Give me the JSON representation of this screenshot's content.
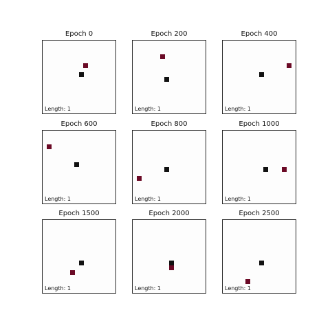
{
  "colors": {
    "snake": "#111111",
    "food": "#6b0a26",
    "board_background": "#fdfdfd",
    "border": "#222222"
  },
  "grid_size": 16,
  "panels": [
    {
      "title": "Epoch 0",
      "length_label": "Length: 1",
      "snake": [
        [
          8,
          7
        ]
      ],
      "food": [
        9,
        5
      ]
    },
    {
      "title": "Epoch 200",
      "length_label": "Length: 1",
      "snake": [
        [
          7,
          8
        ]
      ],
      "food": [
        6,
        3
      ]
    },
    {
      "title": "Epoch 400",
      "length_label": "Length: 1",
      "snake": [
        [
          8,
          7
        ]
      ],
      "food": [
        14,
        5
      ]
    },
    {
      "title": "Epoch 600",
      "length_label": "Length: 1",
      "snake": [
        [
          7,
          7
        ]
      ],
      "food": [
        1,
        3
      ]
    },
    {
      "title": "Epoch 800",
      "length_label": "Length: 1",
      "snake": [
        [
          7,
          8
        ]
      ],
      "food": [
        1,
        10
      ]
    },
    {
      "title": "Epoch 1000",
      "length_label": "Length: 1",
      "snake": [
        [
          9,
          8
        ]
      ],
      "food": [
        13,
        8
      ]
    },
    {
      "title": "Epoch 1500",
      "length_label": "Length: 1",
      "snake": [
        [
          8,
          9
        ]
      ],
      "food": [
        6,
        11
      ]
    },
    {
      "title": "Epoch 2000",
      "length_label": "Length: 1",
      "snake": [
        [
          8,
          9
        ]
      ],
      "food": [
        8,
        10
      ]
    },
    {
      "title": "Epoch 2500",
      "length_label": "Length: 1",
      "snake": [
        [
          8,
          9
        ]
      ],
      "food": [
        5,
        13
      ]
    }
  ]
}
